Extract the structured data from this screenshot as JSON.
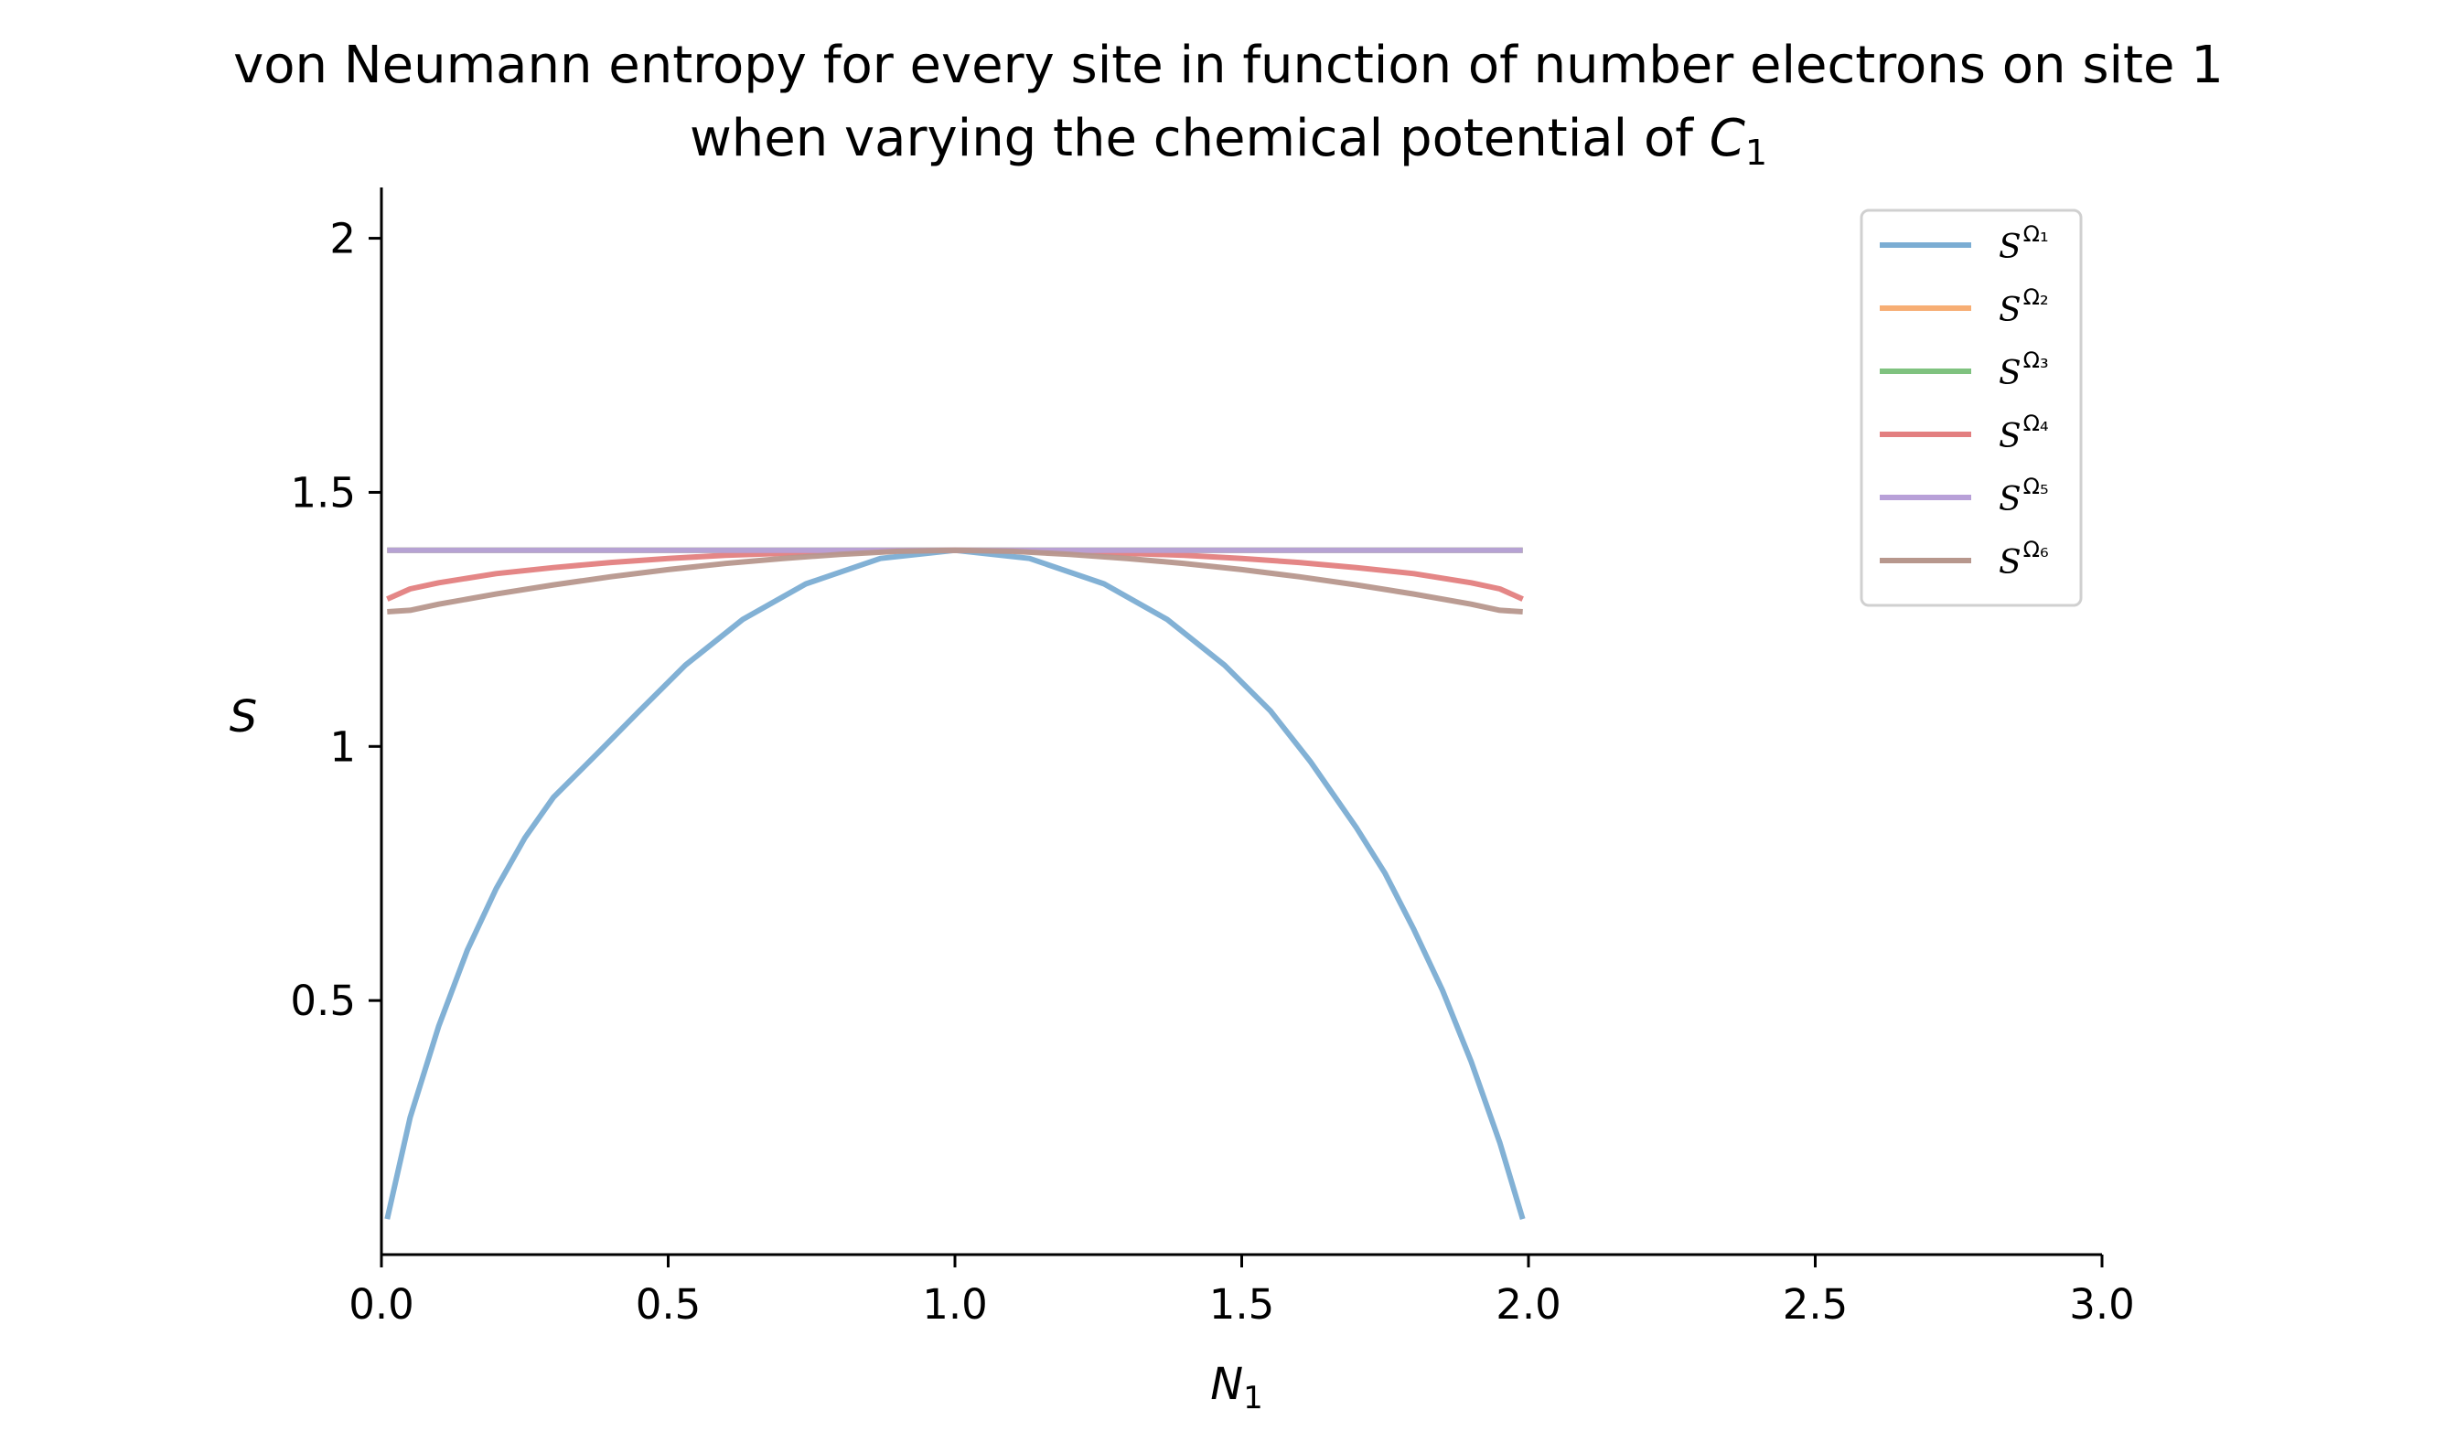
{
  "chart_data": {
    "type": "line",
    "title": "von Neumann entropy for every site in function of number electrons on site 1",
    "subtitle_prefix": "when varying the chemical potential of ",
    "subtitle_symbol": "C",
    "subtitle_subscript": "1",
    "xlabel_symbol": "N",
    "xlabel_subscript": "1",
    "ylabel": "S",
    "xlim": [
      0,
      3
    ],
    "ylim": [
      0,
      2.1
    ],
    "xticks": [
      {
        "value": 0,
        "label": "0.0"
      },
      {
        "value": 0.5,
        "label": "0.5"
      },
      {
        "value": 1,
        "label": "1.0"
      },
      {
        "value": 1.5,
        "label": "1.5"
      },
      {
        "value": 2,
        "label": "2.0"
      },
      {
        "value": 2.5,
        "label": "2.5"
      },
      {
        "value": 3,
        "label": "3.0"
      }
    ],
    "yticks": [
      {
        "value": 0.5,
        "label": "0.5"
      },
      {
        "value": 1,
        "label": "1"
      },
      {
        "value": 1.5,
        "label": "1.5"
      },
      {
        "value": 2,
        "label": "2"
      }
    ],
    "legend_position": "upper right",
    "series": [
      {
        "name": "S^Ω1",
        "base": "S",
        "sup": "Ω₁",
        "color": "#7badd3",
        "x": [
          0.01,
          0.05,
          0.1,
          0.15,
          0.2,
          0.25,
          0.3,
          0.38,
          0.45,
          0.53,
          0.63,
          0.74,
          0.87,
          1.0,
          1.13,
          1.26,
          1.37,
          1.47,
          1.55,
          1.62,
          1.7,
          1.75,
          1.8,
          1.85,
          1.9,
          1.95,
          1.99
        ],
        "y": [
          0.07,
          0.27,
          0.45,
          0.6,
          0.72,
          0.82,
          0.9,
          0.99,
          1.07,
          1.16,
          1.25,
          1.32,
          1.37,
          1.386,
          1.37,
          1.32,
          1.25,
          1.16,
          1.07,
          0.97,
          0.84,
          0.75,
          0.64,
          0.52,
          0.38,
          0.22,
          0.07
        ]
      },
      {
        "name": "S^Ω2",
        "base": "S",
        "sup": "Ω₂",
        "color": "#f7ae74",
        "x": [
          0.01,
          1.99
        ],
        "y": [
          1.386,
          1.386
        ]
      },
      {
        "name": "S^Ω3",
        "base": "S",
        "sup": "Ω₃",
        "color": "#7fc27f",
        "x": [
          0.01,
          1.99
        ],
        "y": [
          1.386,
          1.386
        ]
      },
      {
        "name": "S^Ω4",
        "base": "S",
        "sup": "Ω₄",
        "color": "#e37f80",
        "x": [
          0.01,
          0.05,
          0.1,
          0.2,
          0.3,
          0.4,
          0.5,
          0.6,
          0.7,
          0.8,
          0.9,
          1.0,
          1.1,
          1.2,
          1.3,
          1.4,
          1.5,
          1.6,
          1.7,
          1.8,
          1.9,
          1.95,
          1.99
        ],
        "y": [
          1.29,
          1.31,
          1.322,
          1.34,
          1.352,
          1.362,
          1.37,
          1.376,
          1.38,
          1.383,
          1.385,
          1.386,
          1.385,
          1.383,
          1.38,
          1.376,
          1.37,
          1.362,
          1.352,
          1.34,
          1.322,
          1.31,
          1.29
        ]
      },
      {
        "name": "S^Ω5",
        "base": "S",
        "sup": "Ω₅",
        "color": "#b8a0d8",
        "x": [
          0.01,
          1.99
        ],
        "y": [
          1.386,
          1.386
        ]
      },
      {
        "name": "S^Ω6",
        "base": "S",
        "sup": "Ω₆",
        "color": "#b7978d",
        "x": [
          0.01,
          0.05,
          0.1,
          0.2,
          0.3,
          0.4,
          0.5,
          0.6,
          0.7,
          0.8,
          0.9,
          1.0,
          1.1,
          1.2,
          1.3,
          1.4,
          1.5,
          1.6,
          1.7,
          1.8,
          1.9,
          1.95,
          1.99
        ],
        "y": [
          1.265,
          1.268,
          1.28,
          1.3,
          1.318,
          1.334,
          1.348,
          1.36,
          1.37,
          1.378,
          1.384,
          1.386,
          1.384,
          1.378,
          1.37,
          1.36,
          1.348,
          1.334,
          1.318,
          1.3,
          1.28,
          1.268,
          1.265
        ]
      }
    ]
  }
}
